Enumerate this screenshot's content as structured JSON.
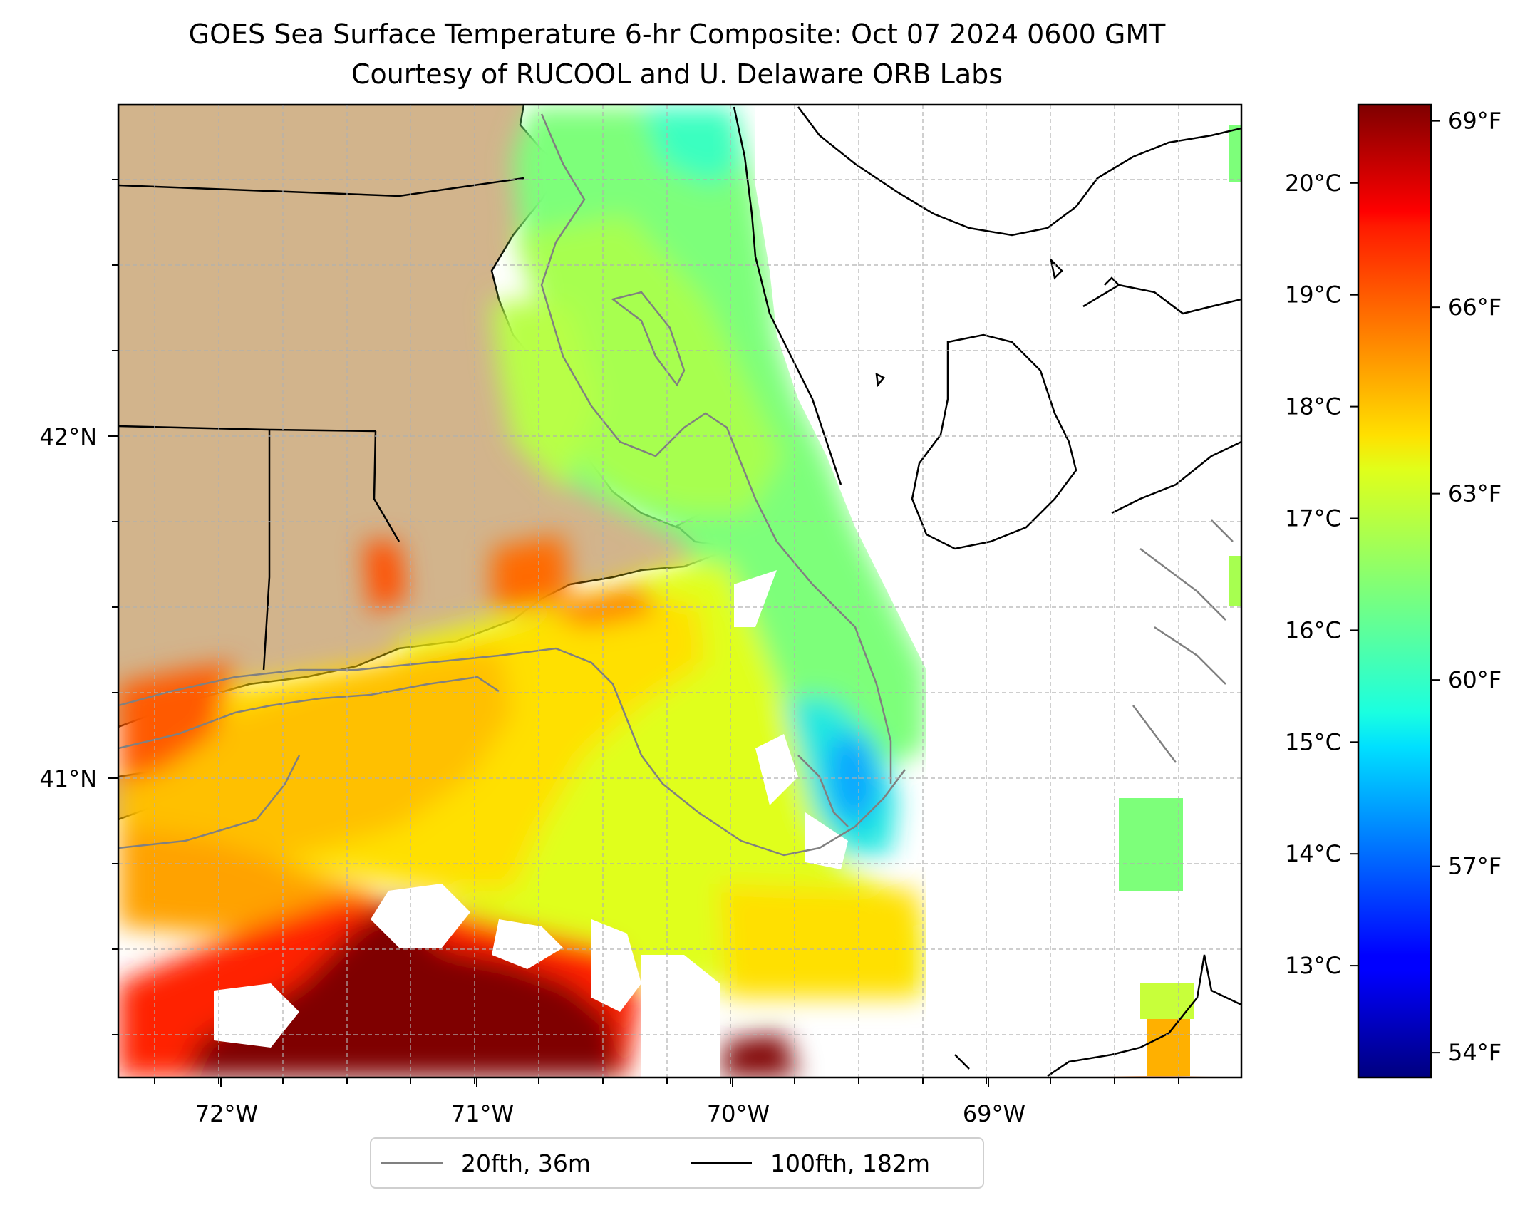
{
  "title": {
    "line1": "GOES Sea Surface Temperature 6-hr Composite: Oct 07 2024 0600 GMT",
    "line2": "Courtesy of RUCOOL and U. Delaware ORB Labs"
  },
  "map": {
    "lon_range": [
      -72.4,
      -68.0
    ],
    "lat_range": [
      40.15,
      43.0
    ],
    "lon_ticks": [
      {
        "value": -72,
        "label": "72°W"
      },
      {
        "value": -71,
        "label": "71°W"
      },
      {
        "value": -70,
        "label": "70°W"
      },
      {
        "value": -69,
        "label": "69°W"
      }
    ],
    "lat_ticks": [
      {
        "value": 41,
        "label": "41°N"
      },
      {
        "value": 42,
        "label": "42°N"
      }
    ],
    "grid": true,
    "colors": {
      "land": "#d2b48c",
      "no_data": "#ffffff",
      "coast": "#000000"
    }
  },
  "colorbar": {
    "colormap": "jet",
    "range_c": [
      12.0,
      20.7
    ],
    "celsius_ticks": [
      {
        "value": 13,
        "label": "13°C"
      },
      {
        "value": 14,
        "label": "14°C"
      },
      {
        "value": 15,
        "label": "15°C"
      },
      {
        "value": 16,
        "label": "16°C"
      },
      {
        "value": 17,
        "label": "17°C"
      },
      {
        "value": 18,
        "label": "18°C"
      },
      {
        "value": 19,
        "label": "19°C"
      },
      {
        "value": 20,
        "label": "20°C"
      }
    ],
    "fahrenheit_ticks": [
      {
        "value": 54,
        "label": "54°F"
      },
      {
        "value": 57,
        "label": "57°F"
      },
      {
        "value": 60,
        "label": "60°F"
      },
      {
        "value": 63,
        "label": "63°F"
      },
      {
        "value": 66,
        "label": "66°F"
      },
      {
        "value": 69,
        "label": "69°F"
      }
    ]
  },
  "legend": {
    "items": [
      {
        "label": "20fth, 36m",
        "color": "#808080"
      },
      {
        "label": "100fth, 182m",
        "color": "#000000"
      }
    ]
  }
}
